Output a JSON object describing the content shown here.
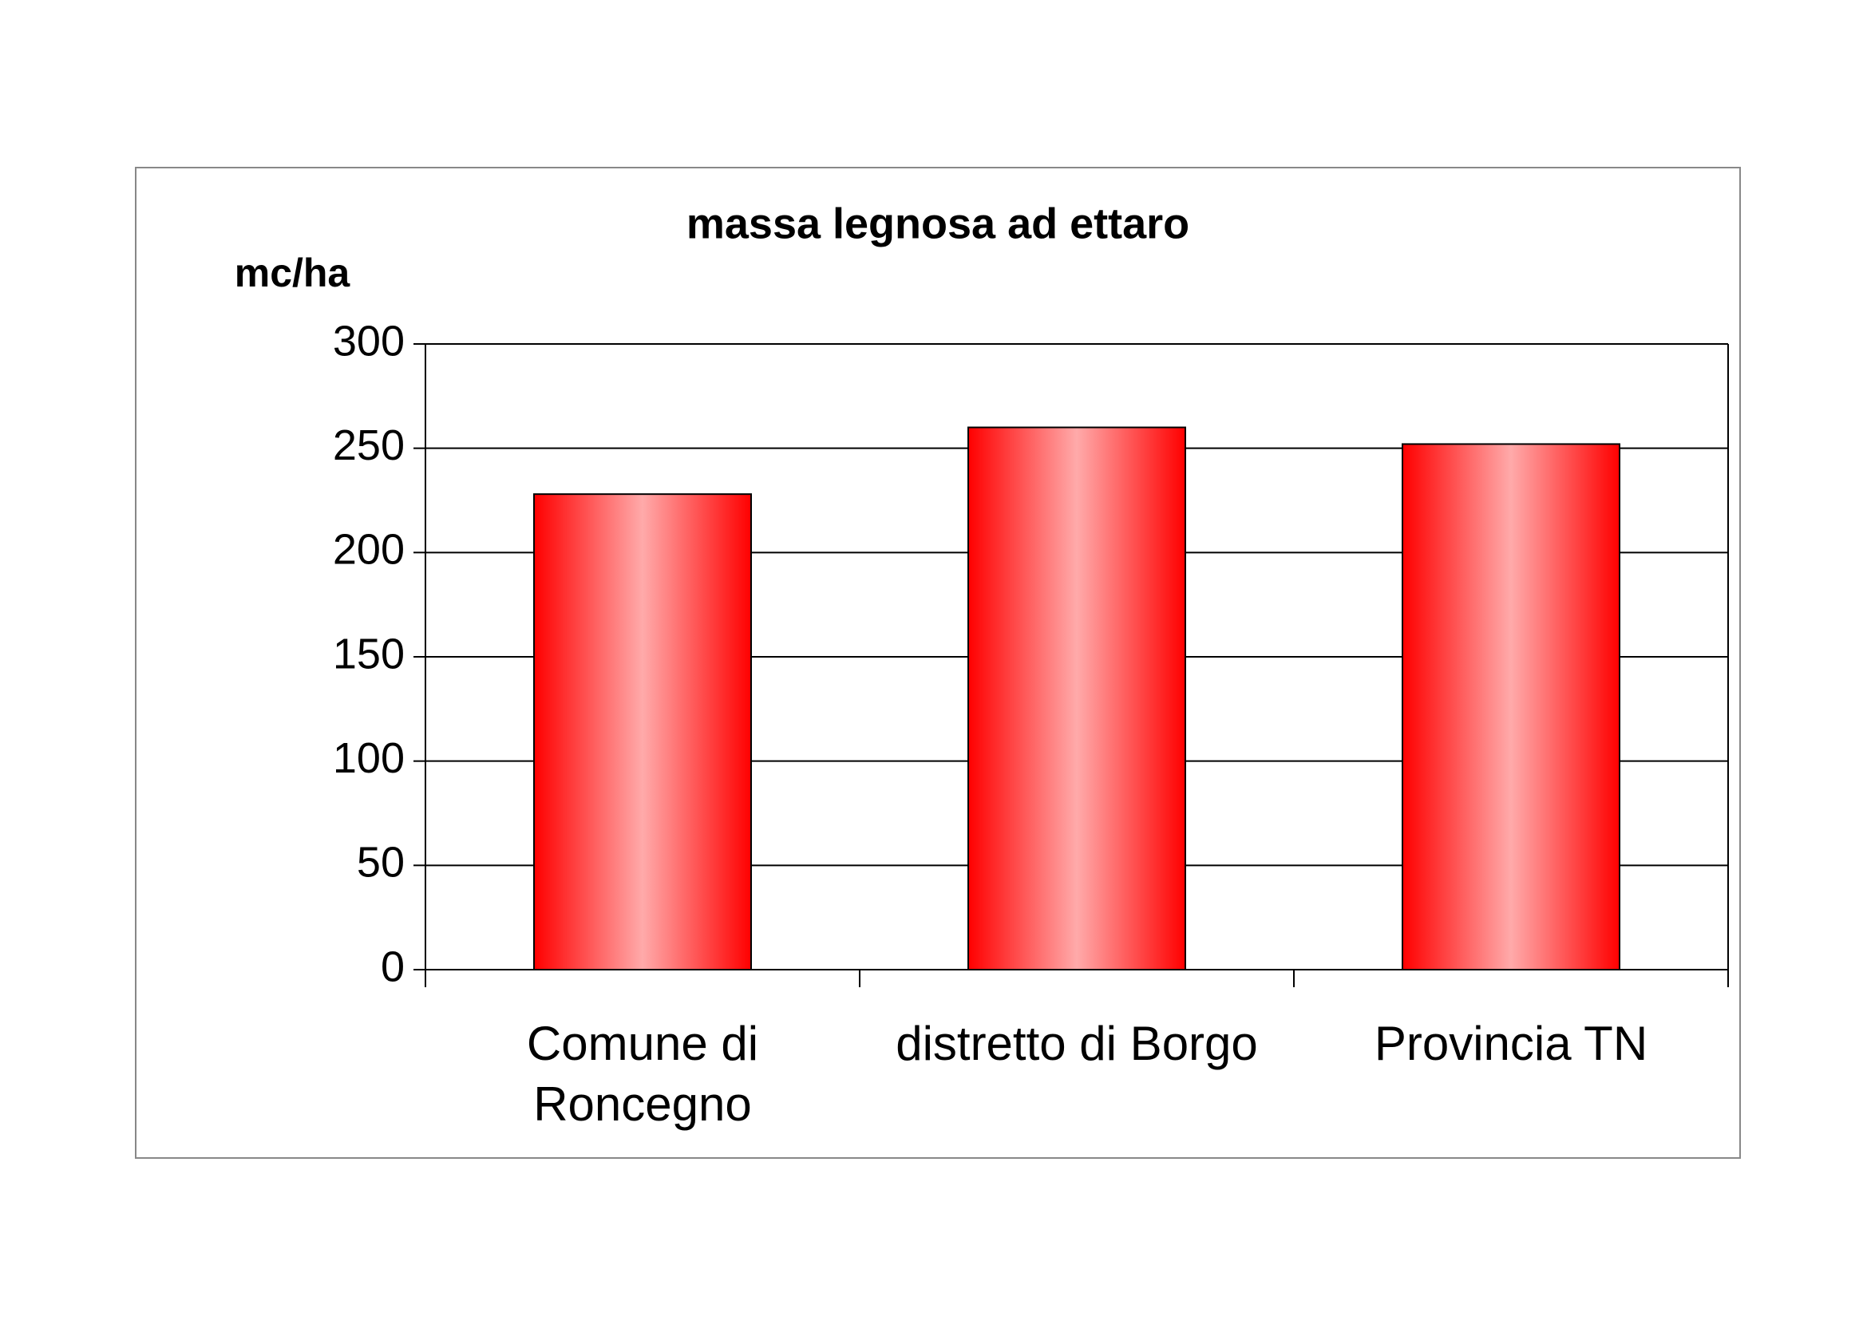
{
  "chart_data": {
    "type": "bar",
    "title": "massa legnosa ad ettaro",
    "y_label": "mc/ha",
    "categories": [
      "Comune di Roncegno",
      "distretto di Borgo",
      "Provincia TN"
    ],
    "values": [
      228,
      260,
      252
    ],
    "color": "#ff0000",
    "ylim": [
      0,
      300
    ],
    "yticks": [
      0,
      50,
      100,
      150,
      200,
      250,
      300
    ],
    "grid": true
  }
}
